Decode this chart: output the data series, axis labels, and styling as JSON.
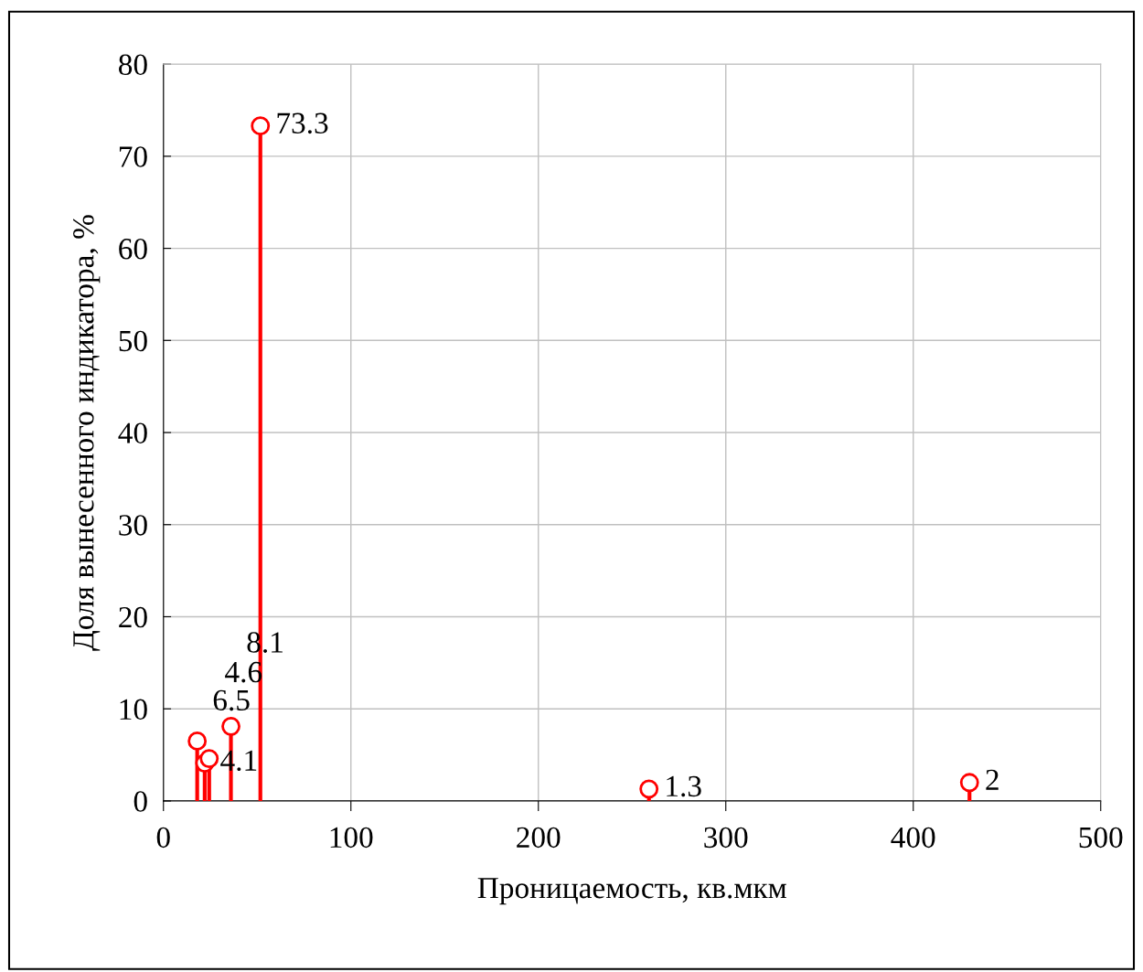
{
  "chart_data": {
    "type": "lollipop",
    "xlabel": "Проницаемость, кв.мкм",
    "ylabel": "Доля вынесенного индикатора, %",
    "x": [
      18,
      22,
      24.4,
      36,
      51.7,
      259,
      430
    ],
    "values": [
      6.5,
      4.1,
      4.6,
      8.1,
      73.3,
      1.3,
      2
    ],
    "color": "#ff0000",
    "marker": "circle",
    "data_labels": true,
    "xlim": [
      0,
      500
    ],
    "xticks": [
      0,
      100,
      200,
      300,
      400,
      500
    ],
    "ylim": [
      0,
      80
    ],
    "yticks": [
      0,
      10,
      20,
      30,
      40,
      50,
      60,
      70,
      80
    ],
    "grid": true
  }
}
